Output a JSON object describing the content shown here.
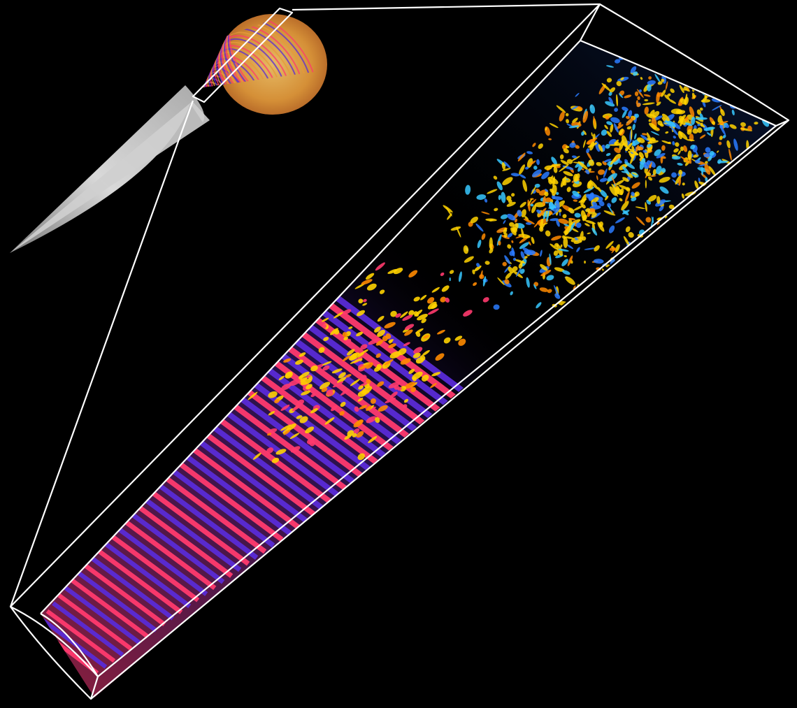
{
  "image": {
    "background": "#000000",
    "subject": "cone-with-transition-zoom",
    "palette": {
      "frame": "#ffffff",
      "cone": "#c8c8c8",
      "laminar_wave_a": "#ff3a6e",
      "laminar_wave_b": "#5a2bd6",
      "transition_hot": "#ffd200",
      "transition_warm": "#ff8a00",
      "turbulent_cool": "#2a7bff",
      "turbulent_cyan": "#37c8ff"
    }
  }
}
